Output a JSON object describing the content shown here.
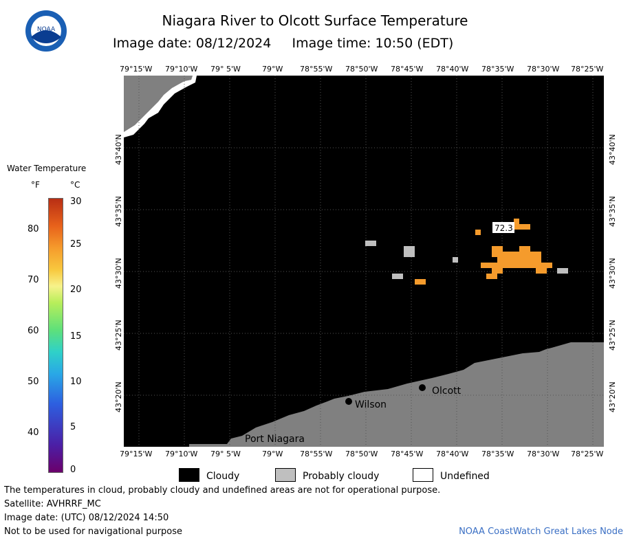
{
  "header": {
    "title": "Niagara River to Olcott Surface Temperature",
    "subtitle": "Image date: 08/12/2024     Image time: 10:50 (EDT)",
    "logo_text": "NOAA"
  },
  "map": {
    "lon_labels": [
      "79°15'W",
      "79°10'W",
      "79° 5'W",
      "79°W",
      "78°55'W",
      "78°50'W",
      "78°45'W",
      "78°40'W",
      "78°35'W",
      "78°30'W",
      "78°25'W"
    ],
    "lat_labels": [
      "43°40'N",
      "43°35'N",
      "43°30'N",
      "43°25'N",
      "43°20'N"
    ],
    "places": [
      {
        "name": "Olcott"
      },
      {
        "name": "Wilson"
      },
      {
        "name": "Port Niagara"
      }
    ],
    "temperature_annotation": "72.3",
    "colors": {
      "cloudy": "#000000",
      "probably_cloudy": "#bfbfbf",
      "undefined": "#ffffff",
      "land": "#808080",
      "warm_water": "#f59b2c"
    }
  },
  "legend": {
    "title": "Water Temperature",
    "unit_f": "°F",
    "unit_c": "°C",
    "fahrenheit_ticks": [
      "80",
      "70",
      "60",
      "50",
      "40"
    ],
    "celsius_ticks": [
      "30",
      "25",
      "20",
      "15",
      "10",
      "5",
      "0"
    ]
  },
  "key": {
    "cloudy": "Cloudy",
    "probably_cloudy": "Probably cloudy",
    "undefined": "Undefined"
  },
  "footer": {
    "line1": "The temperatures in cloud, probably cloudy and undefined areas are not for operational purpose.",
    "line2": "Satellite: AVHRRF_MC",
    "line3": "Image date: (UTC) 08/12/2024  14:50",
    "line4": "Not to be used for navigational purpose",
    "credit": "NOAA CoastWatch Great Lakes Node"
  }
}
